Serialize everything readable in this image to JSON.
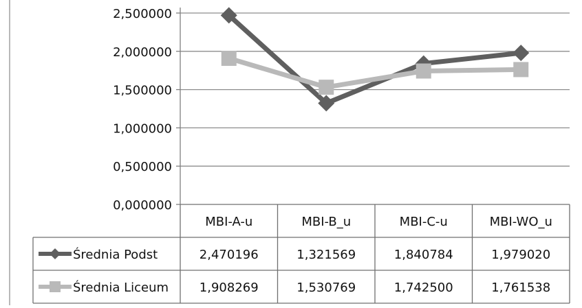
{
  "chart_data": {
    "type": "line",
    "categories": [
      "MBI-A-u",
      "MBI-B_u",
      "MBI-C-u",
      "MBI-WO_u"
    ],
    "series": [
      {
        "name": "Średnia Podst",
        "values": [
          2.470196,
          1.321569,
          1.840784,
          1.97902
        ],
        "labels": [
          "2,470196",
          "1,321569",
          "1,840784",
          "1,979020"
        ],
        "color": "#5f5f5f",
        "marker": "diamond"
      },
      {
        "name": "Średnia Liceum",
        "values": [
          1.908269,
          1.530769,
          1.7425,
          1.761538
        ],
        "labels": [
          "1,908269",
          "1,530769",
          "1,742500",
          "1,761538"
        ],
        "color": "#b9b9b9",
        "marker": "square"
      }
    ],
    "yticks": [
      "0,000000",
      "0,500000",
      "1,000000",
      "1,500000",
      "2,000000",
      "2,500000"
    ],
    "ylim": [
      0,
      2.5
    ],
    "grid": true,
    "data_table": true,
    "legend": "in-table-left",
    "line_colors": {
      "axis": "#7f7f7f",
      "grid": "#8c8c8c",
      "table": "#6f6f6f"
    }
  }
}
